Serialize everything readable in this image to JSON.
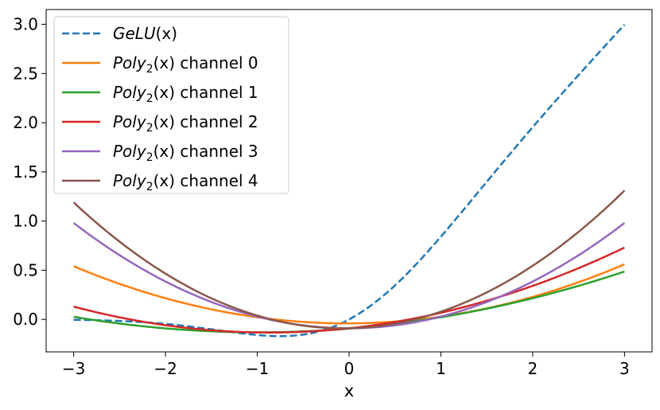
{
  "chart_data": {
    "type": "line",
    "xlabel": "x",
    "ylabel": "",
    "xlim": [
      -3.3,
      3.3
    ],
    "ylim": [
      -0.33,
      3.15
    ],
    "xticks": [
      -3,
      -2,
      -1,
      0,
      1,
      2,
      3
    ],
    "yticks": [
      0.0,
      0.5,
      1.0,
      1.5,
      2.0,
      2.5,
      3.0
    ],
    "xtick_labels": [
      "−3",
      "−2",
      "−1",
      "0",
      "1",
      "2",
      "3"
    ],
    "ytick_labels": [
      "0.0",
      "0.5",
      "1.0",
      "1.5",
      "2.0",
      "2.5",
      "3.0"
    ],
    "grid": false,
    "legend_position": "top-left",
    "series": [
      {
        "name": "GeLU(x)",
        "legend_italic": "GeLU",
        "legend_rest": "(x)",
        "color": "#1f77b4",
        "style": "dashed",
        "function": "gelu",
        "points": [
          [
            -3,
            -0.004
          ],
          [
            -2,
            -0.045
          ],
          [
            -1,
            -0.159
          ],
          [
            -0.75,
            -0.17
          ],
          [
            0,
            0
          ],
          [
            1,
            0.841
          ],
          [
            2,
            1.955
          ],
          [
            3,
            2.996
          ]
        ]
      },
      {
        "name": "Poly2(x) channel 0",
        "legend_italic": "Poly",
        "legend_sub": "2",
        "legend_rest": "(x) channel 0",
        "color": "#ff7f0e",
        "style": "solid",
        "coeffs": [
          -0.04,
          0.0033,
          0.0656
        ]
      },
      {
        "name": "Poly2(x) channel 1",
        "legend_italic": "Poly",
        "legend_sub": "2",
        "legend_rest": "(x) channel 1",
        "color": "#2ca02c",
        "style": "solid",
        "coeffs": [
          -0.0933,
          0.0767,
          0.0389
        ]
      },
      {
        "name": "Poly2(x) channel 2",
        "legend_italic": "Poly",
        "legend_sub": "2",
        "legend_rest": "(x) channel 2",
        "color": "#d62728",
        "style": "solid",
        "coeffs": [
          -0.09,
          0.1,
          0.0578
        ]
      },
      {
        "name": "Poly2(x) channel 3",
        "legend_italic": "Poly",
        "legend_sub": "2",
        "legend_rest": "(x) channel 3",
        "color": "#9467bd",
        "style": "solid",
        "coeffs": [
          -0.09,
          0.0,
          0.1189
        ]
      },
      {
        "name": "Poly2(x) channel 4",
        "legend_italic": "Poly",
        "legend_sub": "2",
        "legend_rest": "(x) channel 4",
        "color": "#8c564b",
        "style": "solid",
        "coeffs": [
          -0.09,
          0.02,
          0.1489
        ]
      }
    ]
  }
}
